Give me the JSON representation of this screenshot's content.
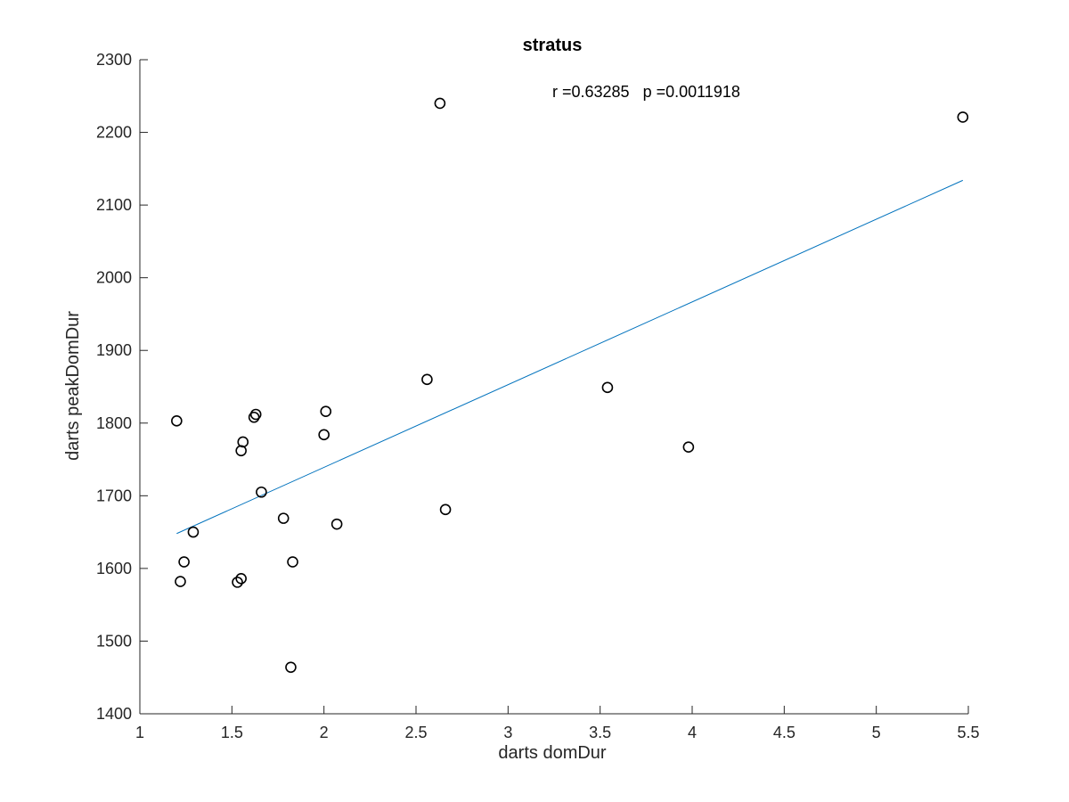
{
  "chart_data": {
    "type": "scatter",
    "title": "stratus",
    "xlabel": "darts domDur",
    "ylabel": "darts peakDomDur",
    "xlim": [
      1,
      5.5
    ],
    "ylim": [
      1400,
      2300
    ],
    "xticks": [
      1,
      1.5,
      2,
      2.5,
      3,
      3.5,
      4,
      4.5,
      5,
      5.5
    ],
    "xtick_labels": [
      "1",
      "1.5",
      "2",
      "2.5",
      "3",
      "3.5",
      "4",
      "4.5",
      "5",
      "5.5"
    ],
    "yticks": [
      1400,
      1500,
      1600,
      1700,
      1800,
      1900,
      2000,
      2100,
      2200,
      2300
    ],
    "ytick_labels": [
      "1400",
      "1500",
      "1600",
      "1700",
      "1800",
      "1900",
      "2000",
      "2100",
      "2200",
      "2300"
    ],
    "grid": false,
    "legend": "none",
    "annotation": "r =0.63285   p =0.0011918",
    "points": [
      {
        "x": 1.2,
        "y": 1803
      },
      {
        "x": 1.22,
        "y": 1582
      },
      {
        "x": 1.24,
        "y": 1609
      },
      {
        "x": 1.29,
        "y": 1650
      },
      {
        "x": 1.53,
        "y": 1581
      },
      {
        "x": 1.55,
        "y": 1586
      },
      {
        "x": 1.55,
        "y": 1762
      },
      {
        "x": 1.56,
        "y": 1774
      },
      {
        "x": 1.62,
        "y": 1808
      },
      {
        "x": 1.63,
        "y": 1812
      },
      {
        "x": 1.66,
        "y": 1705
      },
      {
        "x": 1.78,
        "y": 1669
      },
      {
        "x": 1.82,
        "y": 1464
      },
      {
        "x": 1.83,
        "y": 1609
      },
      {
        "x": 2.0,
        "y": 1784
      },
      {
        "x": 2.01,
        "y": 1816
      },
      {
        "x": 2.07,
        "y": 1661
      },
      {
        "x": 2.56,
        "y": 1860
      },
      {
        "x": 2.63,
        "y": 2240
      },
      {
        "x": 2.66,
        "y": 1681
      },
      {
        "x": 3.54,
        "y": 1849
      },
      {
        "x": 3.98,
        "y": 1767
      },
      {
        "x": 5.47,
        "y": 2221
      }
    ],
    "fit_line": {
      "x": [
        1.2,
        5.47
      ],
      "y": [
        1648,
        2134
      ]
    },
    "colors": {
      "points": "#000000",
      "fit_line": "#0072BD",
      "axis": "#262626"
    }
  }
}
